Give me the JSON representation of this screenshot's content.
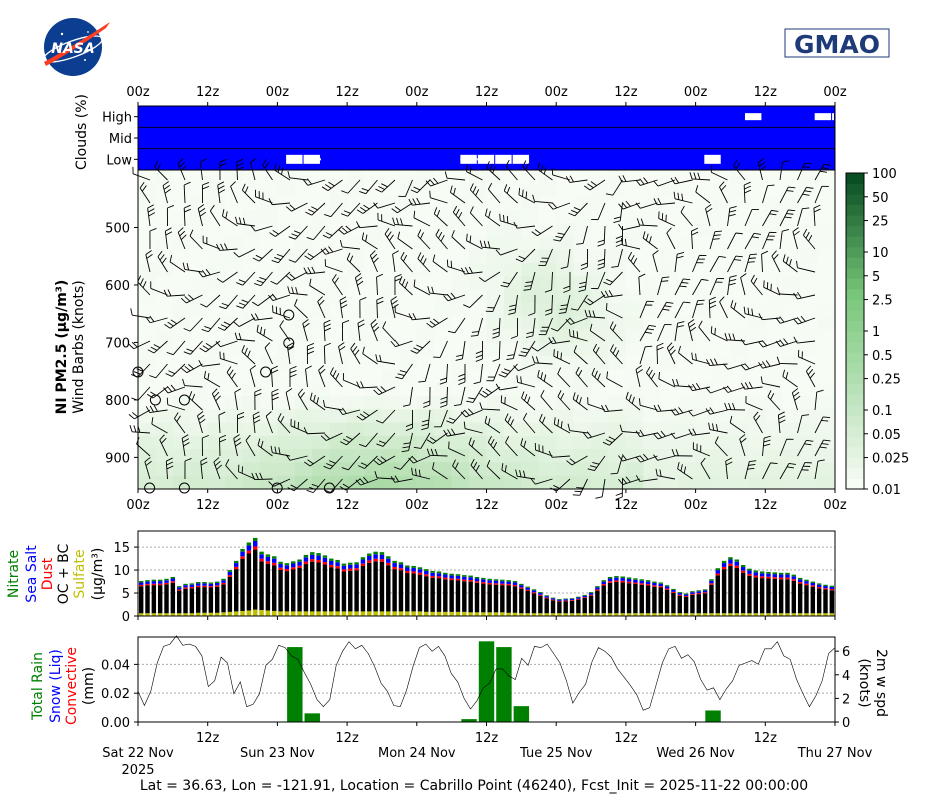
{
  "logos": {
    "nasa": "NASA",
    "gmao": "GMAO"
  },
  "footer": "Lat = 36.63, Lon = -121.91, Location = Cabrillo Point (46240), Fcst_Init = 2025-11-22 00:00:00",
  "time_ticks": [
    "00z",
    "12z",
    "00z",
    "12z",
    "00z",
    "12z",
    "00z",
    "12z",
    "00z",
    "12z",
    "00z"
  ],
  "date_ticks": [
    {
      "label": "Sat 22 Nov",
      "sub": "2025"
    },
    {
      "label": "Sun 23 Nov",
      "sub": ""
    },
    {
      "label": "Mon 24 Nov",
      "sub": ""
    },
    {
      "label": "Tue 25 Nov",
      "sub": ""
    },
    {
      "label": "Wed 26 Nov",
      "sub": ""
    },
    {
      "label": "Thu 27 Nov",
      "sub": ""
    }
  ],
  "colors": {
    "cloud_bg": "#0000ff",
    "cloud_gap": "#ffffff",
    "green": "#008000",
    "blue": "#0000ff",
    "red": "#ff0000",
    "black": "#000000",
    "yellow": "#bfbf00"
  },
  "chart_data": [
    {
      "type": "heatmap",
      "name": "clouds",
      "ylabel": "Clouds (%)",
      "rows": [
        "High",
        "Mid",
        "Low"
      ],
      "x_range_hours": [
        0,
        120
      ],
      "clear_segments": {
        "High": [
          [
            104.5,
            107.5
          ],
          [
            116.5,
            119.5
          ],
          [
            119.5,
            120
          ]
        ],
        "Mid": [],
        "Low": [
          [
            25.5,
            28.5
          ],
          [
            28.5,
            31.5
          ],
          [
            55.5,
            58.5
          ],
          [
            58.5,
            61.5
          ],
          [
            61.5,
            64.5
          ],
          [
            64.5,
            67.5
          ],
          [
            97.5,
            100.5
          ]
        ]
      }
    },
    {
      "type": "heatmap",
      "name": "ni-pm25-wind",
      "ylabel": "NI PM2.5 (μg/m³)",
      "ylabel2": "Wind Barbs (knots)",
      "yticks": [
        500,
        600,
        700,
        800,
        900
      ],
      "ylim": [
        955,
        400
      ],
      "colorbar_ticks": [
        "100",
        "50",
        "25",
        "10",
        "5",
        "2.5",
        "1",
        "0.5",
        "0.25",
        "0.1",
        "0.05",
        "0.025",
        "0.01"
      ],
      "colorbar_values": [
        100,
        50,
        25,
        10,
        5,
        2.5,
        1,
        0.5,
        0.25,
        0.1,
        0.05,
        0.025,
        0.01
      ]
    },
    {
      "type": "bar",
      "name": "aerosol-composition",
      "stacked": true,
      "ylabels": [
        {
          "text": "Nitrate",
          "color": "#008000"
        },
        {
          "text": "Sea Salt",
          "color": "#0000ff"
        },
        {
          "text": "Dust",
          "color": "#ff0000"
        },
        {
          "text": "OC + BC",
          "color": "#000000"
        },
        {
          "text": "Sulfate",
          "color": "#bfbf00"
        },
        {
          "text": "(μg/m³)",
          "color": "#000000"
        }
      ],
      "yticks": [
        0,
        5,
        10,
        15
      ],
      "ylim": [
        0,
        18.5
      ],
      "total_values": [
        7.6,
        7.8,
        7.9,
        7.9,
        8.1,
        8.5,
        6.5,
        7,
        7.1,
        7.4,
        7.4,
        7.3,
        7.5,
        8.1,
        10,
        12,
        14.6,
        16,
        17,
        14,
        13.4,
        13,
        11.8,
        11.5,
        11.9,
        12.3,
        13.3,
        13.9,
        13.7,
        13.2,
        12.5,
        12.2,
        11.4,
        11.6,
        11.7,
        12.8,
        13.6,
        14,
        13.9,
        13,
        12,
        11.7,
        11,
        10.9,
        10.6,
        10.2,
        9.8,
        9.7,
        9.4,
        9.2,
        9.1,
        8.9,
        8.8,
        8.5,
        8.3,
        8.1,
        8,
        7.9,
        7.8,
        7.6,
        7,
        6.4,
        5.8,
        5.2,
        4.5,
        4,
        3.7,
        3.8,
        3.9,
        4.2,
        4.6,
        5.2,
        6.5,
        7.8,
        8.5,
        8.7,
        8.6,
        8.4,
        8.2,
        8,
        7.8,
        7.5,
        7.3,
        6.7,
        5.9,
        5.2,
        4.9,
        5.4,
        5.6,
        5.8,
        8,
        10.4,
        12,
        12.8,
        12.3,
        11.1,
        10.3,
        9.9,
        9.7,
        9.6,
        9.5,
        9.4,
        9.4,
        9,
        8.3,
        7.9,
        7.5,
        7.1,
        6.8,
        6.6
      ],
      "sulfate_values": [
        0.6,
        0.6,
        0.6,
        0.6,
        0.6,
        0.6,
        0.6,
        0.6,
        0.6,
        0.7,
        0.7,
        0.7,
        0.7,
        0.8,
        0.9,
        1,
        1.1,
        1.2,
        1.4,
        1.3,
        1.2,
        1.1,
        1,
        1,
        1,
        1,
        1,
        1,
        1,
        1,
        1,
        1,
        1,
        1,
        1,
        1,
        1,
        1,
        1,
        1,
        1,
        1,
        1,
        1,
        1,
        0.9,
        0.9,
        0.9,
        0.9,
        0.9,
        0.9,
        0.9,
        0.8,
        0.8,
        0.8,
        0.8,
        0.8,
        0.8,
        0.7,
        0.7,
        0.6,
        0.6,
        0.6,
        0.6,
        0.6,
        0.6,
        0.6,
        0.6,
        0.6,
        0.6,
        0.6,
        0.6,
        0.6,
        0.6,
        0.6,
        0.6,
        0.6,
        0.6,
        0.6,
        0.6,
        0.6,
        0.6,
        0.6,
        0.6,
        0.6,
        0.6,
        0.6,
        0.6,
        0.6,
        0.6,
        0.6,
        0.6,
        0.6,
        0.6,
        0.6,
        0.6,
        0.6,
        0.6,
        0.6,
        0.6,
        0.6,
        0.6,
        0.6,
        0.6,
        0.6,
        0.6,
        0.6,
        0.6,
        0.6,
        0.6
      ]
    },
    {
      "type": "bar",
      "name": "precipitation",
      "ylabels": [
        {
          "text": "Total Rain",
          "color": "#008000"
        },
        {
          "text": "Snow (Liq)",
          "color": "#0000ff"
        },
        {
          "text": "Convective",
          "color": "#ff0000"
        },
        {
          "text": "(mm)",
          "color": "#000000"
        }
      ],
      "ylabel_right": [
        "2m w spd",
        "(knots)"
      ],
      "yticks": [
        0,
        0.02,
        0.04
      ],
      "ylim": [
        0,
        0.059
      ],
      "yticks_right": [
        0,
        2,
        4,
        6
      ],
      "ylim_right": [
        0,
        7.2
      ],
      "rain_bars": [
        {
          "x": 27,
          "value": 0.052
        },
        {
          "x": 30,
          "value": 0.006
        },
        {
          "x": 57,
          "value": 0.002
        },
        {
          "x": 60,
          "value": 0.056
        },
        {
          "x": 63,
          "value": 0.052
        },
        {
          "x": 66,
          "value": 0.011
        },
        {
          "x": 99,
          "value": 0.008
        }
      ],
      "wind_speed": [
        2.6,
        1.4,
        2.6,
        5,
        6.4,
        6.6,
        7.3,
        6.5,
        6.6,
        6.4,
        5.6,
        3,
        3.5,
        5.5,
        5,
        2.4,
        3.4,
        1.3,
        1.5,
        2.4,
        4.8,
        5.3,
        6.5,
        6.3,
        5.6,
        5.3,
        4.2,
        3.2,
        1.9,
        1.3,
        1.9,
        4.8,
        6,
        6.8,
        6.2,
        6.5,
        5.8,
        4.7,
        3.3,
        2.6,
        1.4,
        1.3,
        2.7,
        4.7,
        6.3,
        6.6,
        6,
        6.4,
        5.6,
        4.1,
        3.4,
        2,
        1.1,
        1.8,
        2.9,
        3.3,
        4.5,
        4.5,
        3.9,
        3.6,
        5.4,
        4.8,
        6.4,
        6.3,
        6.6,
        5.8,
        5,
        3.5,
        1.6,
        2.5,
        3.2,
        5.1,
        6.3,
        6,
        5.5,
        4.5,
        3.8,
        3.1,
        2.3,
        1,
        1.2,
        3.1,
        5,
        6.2,
        6.4,
        5.4,
        5.7,
        5.1,
        3.6,
        2.7,
        2.9,
        1.9,
        2.8,
        3.5,
        4.8,
        5,
        5.2,
        4.9,
        6.2,
        6.2,
        6.8,
        5.6,
        5.3,
        3.6,
        2.4,
        1.3,
        2.2,
        3.5,
        5.8,
        6.3
      ]
    }
  ]
}
